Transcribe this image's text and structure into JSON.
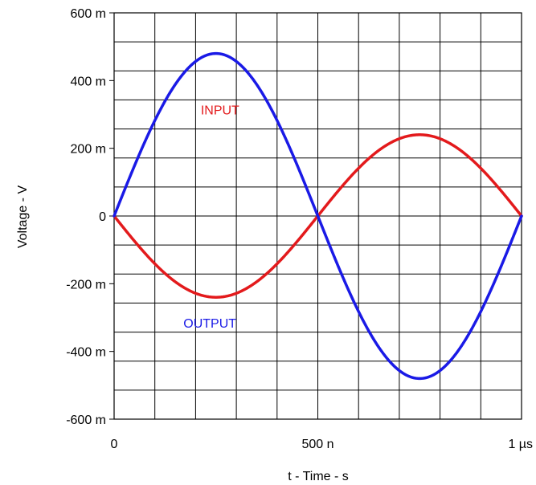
{
  "chart_data": {
    "type": "line",
    "xlabel": "t - Time - s",
    "ylabel": "Voltage - V",
    "xlim": [
      0,
      1e-06
    ],
    "ylim": [
      -0.6,
      0.6
    ],
    "grid": true,
    "x_ticks": [
      {
        "value": 0,
        "label": "0"
      },
      {
        "value": 5e-07,
        "label": "500 n"
      },
      {
        "value": 1e-06,
        "label": "1 µs"
      }
    ],
    "y_ticks": [
      {
        "value": 0.6,
        "label": "600 m"
      },
      {
        "value": 0.4,
        "label": "400 m"
      },
      {
        "value": 0.2,
        "label": "200 m"
      },
      {
        "value": 0,
        "label": "0"
      },
      {
        "value": -0.2,
        "label": "-200 m"
      },
      {
        "value": -0.4,
        "label": "-400 m"
      },
      {
        "value": -0.6,
        "label": "-600 m"
      }
    ],
    "series": [
      {
        "name": "INPUT",
        "color": "#e31a1c",
        "x": [
          0,
          5e-08,
          1e-07,
          1.5e-07,
          2e-07,
          2.5e-07,
          3e-07,
          3.5e-07,
          4e-07,
          4.5e-07,
          5e-07,
          5.5e-07,
          6e-07,
          6.5e-07,
          7e-07,
          7.5e-07,
          8e-07,
          8.5e-07,
          9e-07,
          9.5e-07,
          1e-06
        ],
        "y": [
          0,
          -0.074,
          -0.141,
          -0.194,
          -0.228,
          -0.24,
          -0.228,
          -0.194,
          -0.141,
          -0.074,
          0,
          0.074,
          0.141,
          0.194,
          0.228,
          0.24,
          0.228,
          0.194,
          0.141,
          0.074,
          0
        ]
      },
      {
        "name": "OUTPUT",
        "color": "#1a1ae6",
        "x": [
          0,
          5e-08,
          1e-07,
          1.5e-07,
          2e-07,
          2.5e-07,
          3e-07,
          3.5e-07,
          4e-07,
          4.5e-07,
          5e-07,
          5.5e-07,
          6e-07,
          6.5e-07,
          7e-07,
          7.5e-07,
          8e-07,
          8.5e-07,
          9e-07,
          9.5e-07,
          1e-06
        ],
        "y": [
          0,
          0.148,
          0.282,
          0.388,
          0.456,
          0.48,
          0.456,
          0.388,
          0.282,
          0.148,
          0,
          -0.148,
          -0.282,
          -0.388,
          -0.456,
          -0.48,
          -0.456,
          -0.388,
          -0.282,
          -0.148,
          0
        ]
      }
    ],
    "annotations": [
      {
        "text": "INPUT",
        "color": "#e31a1c",
        "x": 2.6e-07,
        "y": 0.3
      },
      {
        "text": "OUTPUT",
        "color": "#1a1ae6",
        "x": 2.35e-07,
        "y": -0.33
      }
    ]
  }
}
